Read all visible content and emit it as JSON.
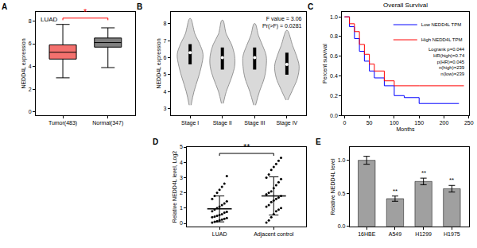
{
  "chart_data": [
    {
      "panel": "A",
      "type": "box",
      "title": "LUAD",
      "categories": [
        "Tumor(483)",
        "Normal(347)"
      ],
      "colors": [
        "#f4716e",
        "#808080"
      ],
      "lowerfence": [
        3.0,
        3.9
      ],
      "q1": [
        4.65,
        5.7
      ],
      "median": [
        5.25,
        6.1
      ],
      "q3": [
        5.9,
        6.5
      ],
      "upperfence": [
        7.7,
        7.4
      ],
      "ylabel": "NEDD4L expression",
      "ylim": [
        -0.3,
        8.8
      ],
      "yticks": [
        0,
        2,
        4,
        6,
        8
      ],
      "significance": "*",
      "grid": false
    },
    {
      "panel": "B",
      "type": "violin",
      "categories": [
        "Stage I",
        "Stage II",
        "Stage III",
        "Stage IV"
      ],
      "color": "#d9d9d9",
      "profiles": [
        {
          "y": [
            3.2,
            4,
            4.8,
            5.5,
            6.2,
            6.8,
            7.4,
            8.3
          ],
          "width": [
            0.03,
            0.12,
            0.25,
            0.35,
            0.4,
            0.3,
            0.15,
            0.02
          ]
        },
        {
          "y": [
            3.3,
            4,
            4.8,
            5.5,
            6.1,
            6.8,
            7.4,
            8.2
          ],
          "width": [
            0.03,
            0.12,
            0.28,
            0.38,
            0.38,
            0.28,
            0.12,
            0.02
          ]
        },
        {
          "y": [
            3.2,
            4,
            4.8,
            5.5,
            6.1,
            6.7,
            7.3,
            8.0
          ],
          "width": [
            0.03,
            0.15,
            0.3,
            0.36,
            0.36,
            0.25,
            0.12,
            0.02
          ]
        },
        {
          "y": [
            3.5,
            4.2,
            4.8,
            5.5,
            6.1,
            6.7,
            7.6
          ],
          "width": [
            0.03,
            0.2,
            0.33,
            0.38,
            0.3,
            0.18,
            0.02
          ]
        }
      ],
      "q1": [
        5.6,
        5.3,
        5.3,
        5.0
      ],
      "median": [
        6.3,
        6.0,
        6.0,
        5.6
      ],
      "q3": [
        6.8,
        6.6,
        6.6,
        6.3
      ],
      "ylabel": "NEDD4L expression",
      "ylim": [
        2.6,
        8.7
      ],
      "yticks": [
        3,
        4,
        5,
        6,
        7,
        8
      ],
      "annotations": [
        "F value = 3.06",
        "Pr(>F) = 0.0281"
      ],
      "grid": false
    },
    {
      "panel": "C",
      "type": "line",
      "title": "Overall Survival",
      "xlabel": "Months",
      "ylabel": "Percent survival",
      "xlim": [
        -5,
        250
      ],
      "xticks": [
        0,
        50,
        100,
        150,
        200,
        250
      ],
      "ylim": [
        0,
        1.05
      ],
      "yticks": [
        {
          "value": 0,
          "label": "0.0"
        },
        {
          "value": 0.2,
          "label": "0.2"
        },
        {
          "value": 0.4,
          "label": "0.4"
        },
        {
          "value": 0.6,
          "label": "0.6"
        },
        {
          "value": 0.8,
          "label": "0.8"
        },
        {
          "value": 1,
          "label": "1.0"
        }
      ],
      "series": [
        {
          "name": "Low NEDD4L TPM",
          "color": "#0000ff",
          "line_style": "step",
          "x": [
            0,
            10,
            20,
            30,
            40,
            50,
            60,
            80,
            100,
            120,
            150,
            230
          ],
          "values": [
            1,
            0.9,
            0.78,
            0.65,
            0.55,
            0.45,
            0.38,
            0.3,
            0.2,
            0.18,
            0.12,
            0.12
          ]
        },
        {
          "name": "High NEDD4L TPM",
          "color": "#ff0000",
          "line_style": "step",
          "x": [
            0,
            10,
            20,
            30,
            40,
            50,
            60,
            80,
            100,
            150,
            240
          ],
          "values": [
            1,
            0.93,
            0.85,
            0.72,
            0.62,
            0.52,
            0.45,
            0.35,
            0.3,
            0.3,
            0.3
          ]
        }
      ],
      "annotations": [
        "Logrank p=0.044",
        "HR(high)=0.74",
        "p(HR)=0.045",
        "n(high)=239",
        "n(low)=239"
      ],
      "legend": "top right",
      "grid": false
    },
    {
      "panel": "D",
      "type": "scatter",
      "categories": [
        "LUAD",
        "Adjacent control"
      ],
      "color": "#000000",
      "points": [
        [
          0.05,
          0.1,
          0.15,
          0.2,
          0.25,
          0.3,
          0.35,
          0.4,
          0.45,
          0.5,
          0.55,
          0.6,
          0.7,
          0.75,
          0.8,
          0.9,
          1.0,
          1.1,
          1.2,
          1.3,
          1.45,
          1.6,
          1.8,
          2.0,
          2.2,
          2.4,
          2.6,
          3.1
        ],
        [
          0.05,
          0.2,
          0.4,
          0.6,
          0.8,
          0.9,
          1.0,
          1.1,
          1.2,
          1.4,
          1.5,
          1.6,
          1.7,
          1.8,
          1.9,
          2.0,
          2.1,
          2.3,
          2.5,
          2.7,
          2.9,
          3.0,
          3.2,
          3.5,
          3.7,
          3.9,
          4.1,
          4.3
        ]
      ],
      "mean": [
        0.95,
        1.8
      ],
      "sd": [
        0.85,
        1.25
      ],
      "ylabel": "Relative NEDD4L level, Log2",
      "ylim": [
        -0.2,
        5
      ],
      "yticks": [
        0,
        1,
        2,
        3,
        4,
        5
      ],
      "significance": "**",
      "grid": false
    },
    {
      "panel": "E",
      "type": "bar",
      "categories": [
        "16HBE",
        "A549",
        "H1299",
        "H1975"
      ],
      "values": [
        1.0,
        0.42,
        0.68,
        0.57
      ],
      "errors": [
        0.06,
        0.04,
        0.05,
        0.05
      ],
      "marks": [
        null,
        "**",
        "**",
        "**"
      ],
      "color": "#a0a0a0",
      "ylabel": "Relative NEDD4L level",
      "ylim": [
        0,
        1.2
      ],
      "yticks": [
        {
          "value": 0,
          "label": "0.0"
        },
        {
          "value": 0.5,
          "label": "0.5"
        },
        {
          "value": 1,
          "label": "1.0"
        }
      ],
      "grid": false
    }
  ]
}
